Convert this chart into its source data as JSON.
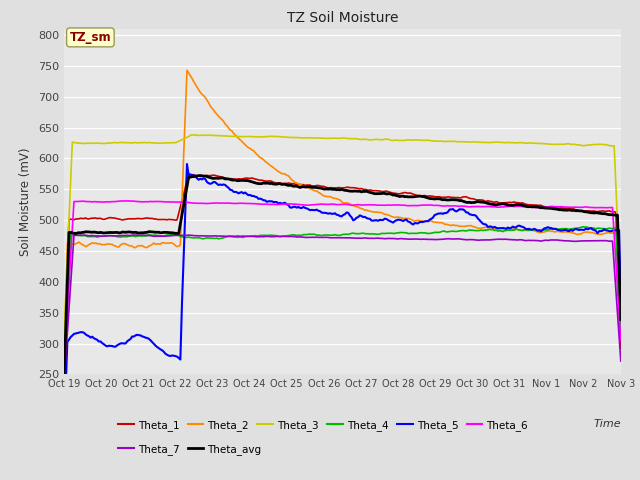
{
  "title": "TZ Soil Moisture",
  "xlabel": "Time",
  "ylabel": "Soil Moisture (mV)",
  "ylim": [
    250,
    810
  ],
  "yticks": [
    250,
    300,
    350,
    400,
    450,
    500,
    550,
    600,
    650,
    700,
    750,
    800
  ],
  "bg_color": "#e0e0e0",
  "plot_bg_color": "#e8e8e8",
  "label_box_text": "TZ_sm",
  "label_box_bg": "#ffffcc",
  "label_box_fg": "#880000",
  "series_colors": {
    "Theta_1": "#cc0000",
    "Theta_2": "#ff8800",
    "Theta_3": "#cccc00",
    "Theta_4": "#00bb00",
    "Theta_5": "#0000ff",
    "Theta_6": "#ff00ff",
    "Theta_7": "#9900cc",
    "Theta_avg": "#000000"
  },
  "series_lw": {
    "Theta_1": 1.2,
    "Theta_2": 1.2,
    "Theta_3": 1.2,
    "Theta_4": 1.2,
    "Theta_5": 1.5,
    "Theta_6": 1.2,
    "Theta_7": 1.2,
    "Theta_avg": 2.0
  },
  "n_points": 336,
  "spike_idx": 72,
  "x_tick_labels": [
    "Oct 19",
    "Oct 20",
    "Oct 21",
    "Oct 22",
    "Oct 23",
    "Oct 24",
    "Oct 25",
    "Oct 26",
    "Oct 27",
    "Oct 28",
    "Oct 29",
    "Oct 30",
    "Oct 31",
    "Nov 1",
    "Nov 2",
    "Nov 3"
  ],
  "legend_row1": [
    "Theta_1",
    "Theta_2",
    "Theta_3",
    "Theta_4",
    "Theta_5",
    "Theta_6"
  ],
  "legend_row2": [
    "Theta_7",
    "Theta_avg"
  ]
}
